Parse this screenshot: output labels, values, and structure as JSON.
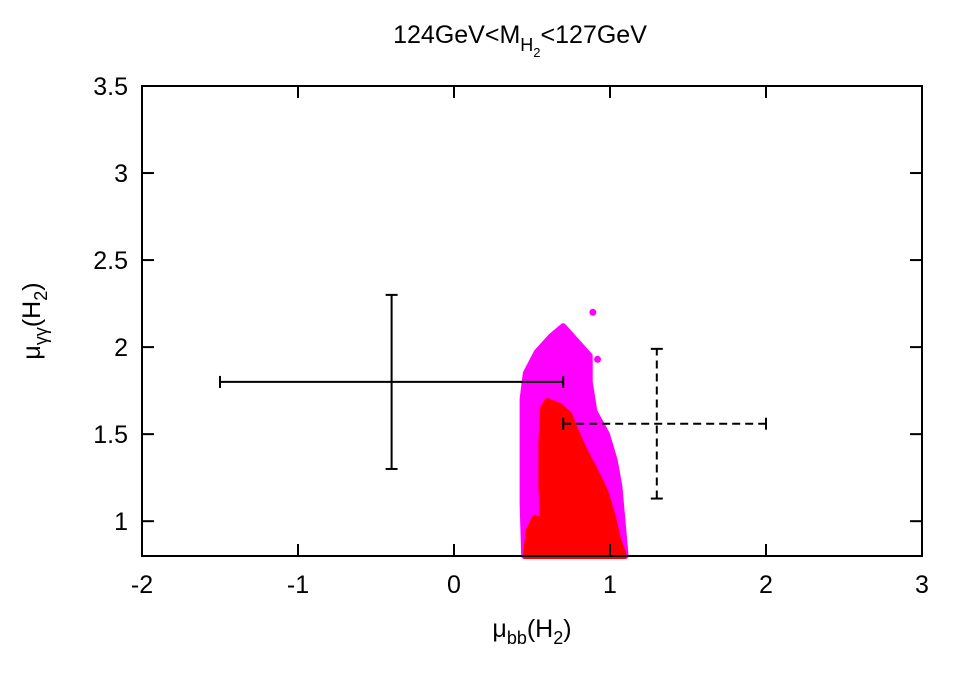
{
  "chart_data": {
    "type": "scatter",
    "title": "124GeV<M",
    "title_sub": "H",
    "title_subsub": "2",
    "title_tail": "<127GeV",
    "xlabel": "μ",
    "xlabel_sub": "bb",
    "xlabel_tail": "(H",
    "xlabel_tail_sub": "2",
    "xlabel_close": ")",
    "ylabel": "μ",
    "ylabel_sub": "γγ",
    "ylabel_tail": "(H",
    "ylabel_tail_sub": "2",
    "ylabel_close": ")",
    "xlim": [
      -2,
      3
    ],
    "ylim": [
      0.8,
      3.5
    ],
    "xticks": [
      -2,
      -1,
      0,
      1,
      2,
      3
    ],
    "xtick_labels": [
      "-2",
      "-1",
      "0",
      "1",
      "2",
      "3"
    ],
    "yticks": [
      1,
      1.5,
      2,
      2.5,
      3,
      3.5
    ],
    "ytick_labels": [
      "1",
      "1.5",
      "2",
      "2.5",
      "3",
      "3.5"
    ],
    "grid": false,
    "legend": "none",
    "colors": {
      "region_outer": "#ff00ff",
      "region_inner": "#ff0000",
      "errorbar": "#000000"
    },
    "regions": [
      {
        "color_key": "region_outer",
        "outline": [
          [
            0.45,
            0.8
          ],
          [
            0.44,
            1.1
          ],
          [
            0.44,
            1.4
          ],
          [
            0.44,
            1.7
          ],
          [
            0.46,
            1.85
          ],
          [
            0.53,
            1.97
          ],
          [
            0.62,
            2.06
          ],
          [
            0.7,
            2.12
          ],
          [
            0.77,
            2.05
          ],
          [
            0.87,
            1.95
          ],
          [
            0.87,
            1.8
          ],
          [
            0.9,
            1.63
          ],
          [
            0.98,
            1.5
          ],
          [
            1.03,
            1.35
          ],
          [
            1.06,
            1.2
          ],
          [
            1.08,
            1.0
          ],
          [
            1.1,
            0.8
          ]
        ],
        "extra_points": [
          [
            0.89,
            2.2
          ],
          [
            0.92,
            1.93
          ],
          [
            0.86,
            1.77
          ]
        ]
      },
      {
        "color_key": "region_inner",
        "outline": [
          [
            0.46,
            0.8
          ],
          [
            0.48,
            0.95
          ],
          [
            0.52,
            1.02
          ],
          [
            0.57,
            1.0
          ],
          [
            0.56,
            1.2
          ],
          [
            0.56,
            1.45
          ],
          [
            0.57,
            1.65
          ],
          [
            0.6,
            1.69
          ],
          [
            0.68,
            1.66
          ],
          [
            0.74,
            1.61
          ],
          [
            0.78,
            1.52
          ],
          [
            0.84,
            1.4
          ],
          [
            0.9,
            1.3
          ],
          [
            0.97,
            1.17
          ],
          [
            1.02,
            1.02
          ],
          [
            1.05,
            0.9
          ],
          [
            1.09,
            0.8
          ]
        ]
      }
    ],
    "errorbars": [
      {
        "x": -0.4,
        "y": 1.8,
        "xmin": -1.5,
        "xmax": 0.7,
        "ymin": 1.3,
        "ymax": 2.3,
        "style": "solid"
      },
      {
        "x": 1.3,
        "y": 1.56,
        "xmin": 0.7,
        "xmax": 2.0,
        "ymin": 1.13,
        "ymax": 1.99,
        "style": "dashed"
      }
    ]
  }
}
